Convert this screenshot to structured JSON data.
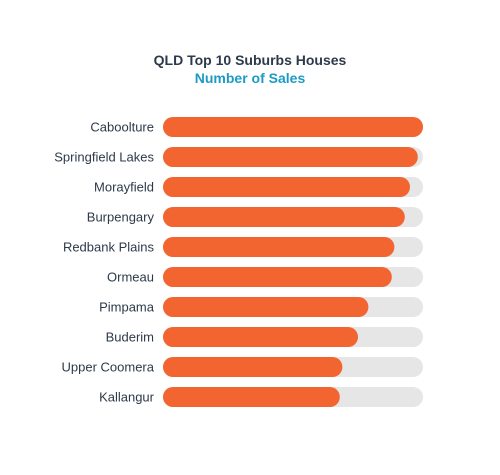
{
  "colors": {
    "bar": "#f26430",
    "track": "#e6e6e6",
    "title": "#2d3a4a",
    "subtitle": "#1b9bc4",
    "label": "#2d3a4a"
  },
  "chart_data": {
    "type": "bar",
    "orientation": "horizontal",
    "title": "QLD Top 10 Suburbs Houses",
    "subtitle": "Number of Sales",
    "categories": [
      "Caboolture",
      "Springfield Lakes",
      "Morayfield",
      "Burpengary",
      "Redbank Plains",
      "Ormeau",
      "Pimpama",
      "Buderim",
      "Upper Coomera",
      "Kallangur"
    ],
    "values": [
      100,
      98,
      95,
      93,
      89,
      88,
      79,
      75,
      69,
      68
    ],
    "value_scale": "relative (percent of the largest bar; no axis or data labels are printed)",
    "xlim": [
      0,
      100
    ],
    "grid": false,
    "legend": "none"
  }
}
